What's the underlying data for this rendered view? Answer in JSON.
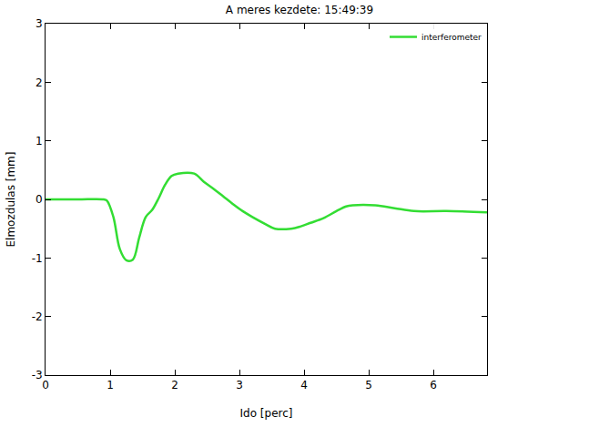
{
  "chart_data": {
    "type": "line",
    "title": "A meres kezdete: 15:49:39",
    "x_label": "Ido [perc]",
    "y_label": "Elmozdulas [mm]",
    "x": [
      0,
      0.5,
      0.9,
      0.95,
      1.05,
      1.15,
      1.25,
      1.35,
      1.45,
      1.55,
      1.65,
      1.75,
      1.85,
      1.95,
      2.05,
      2.3,
      2.45,
      2.6,
      2.75,
      2.9,
      3.05,
      3.2,
      3.4,
      3.55,
      3.8,
      3.95,
      4.1,
      4.3,
      4.5,
      4.65,
      4.75,
      5.1,
      5.4,
      5.7,
      6.2,
      6.83
    ],
    "series": [
      {
        "name": "interferometer",
        "color": "#33dd33",
        "values": [
          0,
          0,
          0,
          -0.02,
          -0.3,
          -0.85,
          -1.04,
          -1.03,
          -0.65,
          -0.3,
          -0.18,
          0.02,
          0.25,
          0.4,
          0.44,
          0.44,
          0.3,
          0.18,
          0.05,
          -0.08,
          -0.2,
          -0.3,
          -0.42,
          -0.5,
          -0.5,
          -0.46,
          -0.4,
          -0.32,
          -0.2,
          -0.12,
          -0.1,
          -0.1,
          -0.15,
          -0.2,
          -0.2,
          -0.22
        ]
      }
    ],
    "xlim": [
      0,
      6.83
    ],
    "ylim": [
      -3,
      3
    ],
    "xticks": [
      0,
      1,
      2,
      3,
      4,
      5,
      6
    ],
    "yticks": [
      -3,
      -2,
      -1,
      0,
      1,
      2,
      3
    ],
    "legend": "upper right",
    "grid": false
  }
}
